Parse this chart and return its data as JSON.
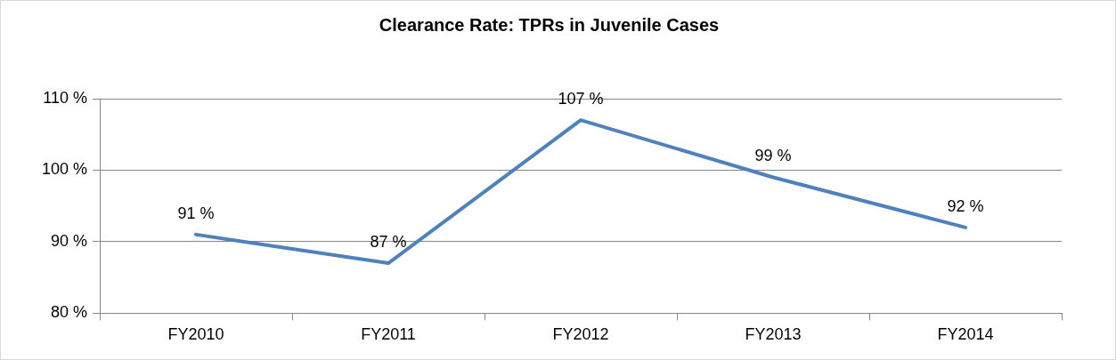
{
  "chart_data": {
    "type": "line",
    "title": "Clearance Rate: TPRs in Juvenile Cases",
    "categories": [
      "FY2010",
      "FY2011",
      "FY2012",
      "FY2013",
      "FY2014"
    ],
    "series": [
      {
        "color": "#4f81bd",
        "values": [
          91,
          87,
          107,
          99,
          92
        ],
        "value_labels": [
          "91 %",
          "87 %",
          "107 %",
          "99 %",
          "92 %"
        ]
      }
    ],
    "ylim": [
      80,
      110
    ],
    "yticks": [
      {
        "value": 80,
        "label": "80 %"
      },
      {
        "value": 90,
        "label": "90 %"
      },
      {
        "value": 100,
        "label": "100 %"
      },
      {
        "value": 110,
        "label": "110 %"
      }
    ],
    "grid": "y",
    "legend": false,
    "marker": "none",
    "line_style": "solid"
  }
}
